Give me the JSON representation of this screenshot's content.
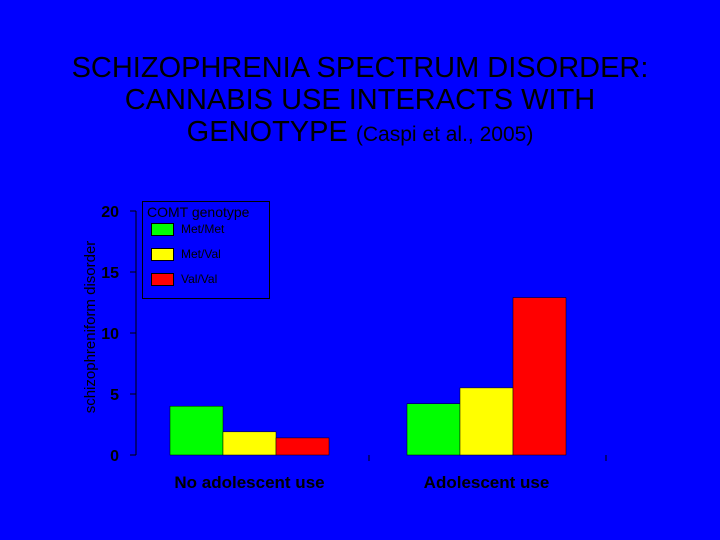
{
  "slide": {
    "title_lines": [
      "SCHIZOPHRENIA SPECTRUM DISORDER:",
      "CANNABIS USE INTERACTS WITH",
      "GENOTYPE"
    ],
    "citation": "(Caspi et al., 2005)"
  },
  "colors": {
    "background": "#0000ff",
    "axis": "#000000"
  },
  "chart_data": {
    "type": "bar",
    "title": "",
    "xlabel": "",
    "ylabel": "schizophreniform disorder",
    "ylim": [
      0,
      20
    ],
    "yticks": [
      0,
      5,
      10,
      15,
      20
    ],
    "grid": false,
    "legend_title": "COMT genotype",
    "legend_position": "top-left",
    "categories": [
      "No adolescent use",
      "Adolescent use"
    ],
    "series": [
      {
        "name": "Met/Met",
        "color": "#00ff00",
        "values": [
          4.0,
          4.2
        ]
      },
      {
        "name": "Met/Val",
        "color": "#ffff00",
        "values": [
          1.9,
          5.5
        ]
      },
      {
        "name": "Val/Val",
        "color": "#ff0000",
        "values": [
          1.4,
          12.9
        ]
      }
    ]
  }
}
